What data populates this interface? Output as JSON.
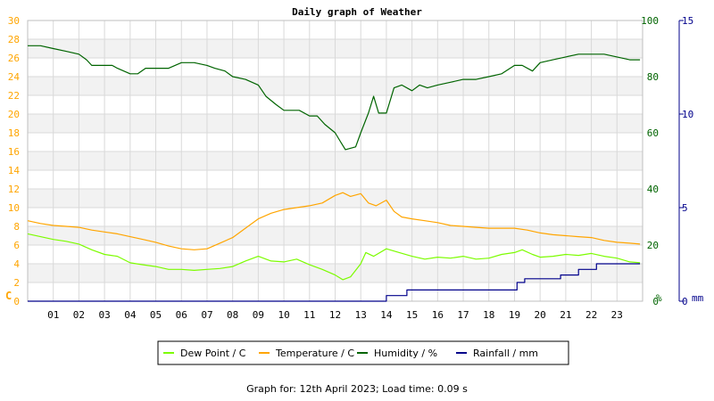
{
  "chart_data": {
    "type": "line",
    "title": "Daily graph of Weather",
    "x_tick_labels": [
      "01",
      "02",
      "03",
      "04",
      "05",
      "06",
      "07",
      "08",
      "09",
      "10",
      "11",
      "12",
      "13",
      "14",
      "15",
      "16",
      "17",
      "18",
      "19",
      "20",
      "21",
      "22",
      "23"
    ],
    "xlim_hours": [
      0,
      24
    ],
    "axes": {
      "left": {
        "unit_label": "C",
        "ylim": [
          0,
          30
        ],
        "ticks": [
          0,
          2,
          4,
          6,
          8,
          10,
          12,
          14,
          16,
          18,
          20,
          22,
          24,
          26,
          28,
          30
        ],
        "color": "#FFA500"
      },
      "right_humidity": {
        "unit_label": "%",
        "ylim": [
          0,
          100
        ],
        "ticks": [
          0,
          20,
          40,
          60,
          80,
          100
        ],
        "color": "#006400"
      },
      "right_rain": {
        "unit_label": "mm",
        "ylim": [
          0,
          15
        ],
        "ticks": [
          0,
          5,
          10,
          15
        ],
        "color": "#00008B"
      }
    },
    "grid": true,
    "legend_position": "bottom",
    "series": [
      {
        "name": "Dew Point / C",
        "axis": "left",
        "color": "#7CFC00",
        "points": [
          [
            0,
            7.2
          ],
          [
            0.5,
            6.9
          ],
          [
            1,
            6.6
          ],
          [
            1.5,
            6.4
          ],
          [
            2,
            6.1
          ],
          [
            2.5,
            5.5
          ],
          [
            3,
            5.0
          ],
          [
            3.5,
            4.8
          ],
          [
            4,
            4.1
          ],
          [
            4.5,
            3.9
          ],
          [
            5,
            3.7
          ],
          [
            5.5,
            3.4
          ],
          [
            6,
            3.4
          ],
          [
            6.5,
            3.3
          ],
          [
            7,
            3.4
          ],
          [
            7.5,
            3.5
          ],
          [
            8,
            3.7
          ],
          [
            8.5,
            4.3
          ],
          [
            9,
            4.8
          ],
          [
            9.5,
            4.3
          ],
          [
            10,
            4.2
          ],
          [
            10.5,
            4.5
          ],
          [
            11,
            3.9
          ],
          [
            11.5,
            3.4
          ],
          [
            12,
            2.8
          ],
          [
            12.3,
            2.3
          ],
          [
            12.6,
            2.6
          ],
          [
            13,
            4.0
          ],
          [
            13.2,
            5.2
          ],
          [
            13.5,
            4.8
          ],
          [
            14,
            5.6
          ],
          [
            14.5,
            5.2
          ],
          [
            15,
            4.8
          ],
          [
            15.5,
            4.5
          ],
          [
            16,
            4.7
          ],
          [
            16.5,
            4.6
          ],
          [
            17,
            4.8
          ],
          [
            17.5,
            4.5
          ],
          [
            18,
            4.6
          ],
          [
            18.5,
            5.0
          ],
          [
            19,
            5.2
          ],
          [
            19.3,
            5.5
          ],
          [
            19.7,
            5.0
          ],
          [
            20,
            4.7
          ],
          [
            20.5,
            4.8
          ],
          [
            21,
            5.0
          ],
          [
            21.5,
            4.9
          ],
          [
            22,
            5.1
          ],
          [
            22.5,
            4.8
          ],
          [
            23,
            4.6
          ],
          [
            23.5,
            4.2
          ],
          [
            23.9,
            4.1
          ]
        ]
      },
      {
        "name": "Temperature / C",
        "axis": "left",
        "color": "#FFA500",
        "points": [
          [
            0,
            8.6
          ],
          [
            0.5,
            8.3
          ],
          [
            1,
            8.1
          ],
          [
            1.5,
            8.0
          ],
          [
            2,
            7.9
          ],
          [
            2.5,
            7.6
          ],
          [
            3,
            7.4
          ],
          [
            3.5,
            7.2
          ],
          [
            4,
            6.9
          ],
          [
            4.5,
            6.6
          ],
          [
            5,
            6.3
          ],
          [
            5.5,
            5.9
          ],
          [
            6,
            5.6
          ],
          [
            6.5,
            5.5
          ],
          [
            7,
            5.6
          ],
          [
            7.5,
            6.2
          ],
          [
            8,
            6.8
          ],
          [
            8.5,
            7.8
          ],
          [
            9,
            8.8
          ],
          [
            9.5,
            9.4
          ],
          [
            10,
            9.8
          ],
          [
            10.5,
            10.0
          ],
          [
            11,
            10.2
          ],
          [
            11.5,
            10.5
          ],
          [
            12,
            11.3
          ],
          [
            12.3,
            11.6
          ],
          [
            12.6,
            11.2
          ],
          [
            13,
            11.5
          ],
          [
            13.3,
            10.5
          ],
          [
            13.6,
            10.2
          ],
          [
            14,
            10.8
          ],
          [
            14.3,
            9.6
          ],
          [
            14.6,
            9.0
          ],
          [
            15,
            8.8
          ],
          [
            15.5,
            8.6
          ],
          [
            16,
            8.4
          ],
          [
            16.5,
            8.1
          ],
          [
            17,
            8.0
          ],
          [
            17.5,
            7.9
          ],
          [
            18,
            7.8
          ],
          [
            18.5,
            7.8
          ],
          [
            19,
            7.8
          ],
          [
            19.5,
            7.6
          ],
          [
            20,
            7.3
          ],
          [
            20.5,
            7.1
          ],
          [
            21,
            7.0
          ],
          [
            21.5,
            6.9
          ],
          [
            22,
            6.8
          ],
          [
            22.5,
            6.5
          ],
          [
            23,
            6.3
          ],
          [
            23.5,
            6.2
          ],
          [
            23.9,
            6.1
          ]
        ]
      },
      {
        "name": "Humidity / %",
        "axis": "right_humidity",
        "color": "#006400",
        "points": [
          [
            0,
            91
          ],
          [
            0.5,
            91
          ],
          [
            1,
            90
          ],
          [
            1.5,
            89
          ],
          [
            2,
            88
          ],
          [
            2.3,
            86
          ],
          [
            2.5,
            84
          ],
          [
            3,
            84
          ],
          [
            3.3,
            84
          ],
          [
            3.5,
            83
          ],
          [
            4,
            81
          ],
          [
            4.3,
            81
          ],
          [
            4.6,
            83
          ],
          [
            5,
            83
          ],
          [
            5.5,
            83
          ],
          [
            6,
            85
          ],
          [
            6.5,
            85
          ],
          [
            7,
            84
          ],
          [
            7.3,
            83
          ],
          [
            7.7,
            82
          ],
          [
            8,
            80
          ],
          [
            8.5,
            79
          ],
          [
            9,
            77
          ],
          [
            9.3,
            73
          ],
          [
            9.7,
            70
          ],
          [
            10,
            68
          ],
          [
            10.3,
            68
          ],
          [
            10.6,
            68
          ],
          [
            11,
            66
          ],
          [
            11.3,
            66
          ],
          [
            11.6,
            63
          ],
          [
            12,
            60
          ],
          [
            12.2,
            57
          ],
          [
            12.4,
            54
          ],
          [
            12.8,
            55
          ],
          [
            13,
            60
          ],
          [
            13.3,
            67
          ],
          [
            13.5,
            73
          ],
          [
            13.7,
            67
          ],
          [
            14,
            67
          ],
          [
            14.3,
            76
          ],
          [
            14.6,
            77
          ],
          [
            15,
            75
          ],
          [
            15.3,
            77
          ],
          [
            15.6,
            76
          ],
          [
            16,
            77
          ],
          [
            16.5,
            78
          ],
          [
            17,
            79
          ],
          [
            17.5,
            79
          ],
          [
            18,
            80
          ],
          [
            18.5,
            81
          ],
          [
            19,
            84
          ],
          [
            19.3,
            84
          ],
          [
            19.7,
            82
          ],
          [
            20,
            85
          ],
          [
            20.5,
            86
          ],
          [
            21,
            87
          ],
          [
            21.5,
            88
          ],
          [
            22,
            88
          ],
          [
            22.5,
            88
          ],
          [
            23,
            87
          ],
          [
            23.5,
            86
          ],
          [
            23.9,
            86
          ]
        ]
      },
      {
        "name": "Rainfall / mm",
        "axis": "right_rain",
        "color": "#00008B",
        "step": true,
        "points": [
          [
            0,
            0
          ],
          [
            14,
            0
          ],
          [
            14,
            0.3
          ],
          [
            14.8,
            0.3
          ],
          [
            14.8,
            0.6
          ],
          [
            19.1,
            0.6
          ],
          [
            19.1,
            1.0
          ],
          [
            19.4,
            1.0
          ],
          [
            19.4,
            1.2
          ],
          [
            20.8,
            1.2
          ],
          [
            20.8,
            1.4
          ],
          [
            21.5,
            1.4
          ],
          [
            21.5,
            1.7
          ],
          [
            22.2,
            1.7
          ],
          [
            22.2,
            2.0
          ],
          [
            23.9,
            2.0
          ]
        ]
      }
    ]
  },
  "footer": {
    "prefix": "Graph for:",
    "date": "12th April 2023",
    "load_label": "; Load time:",
    "load_value": "0.09 s"
  }
}
